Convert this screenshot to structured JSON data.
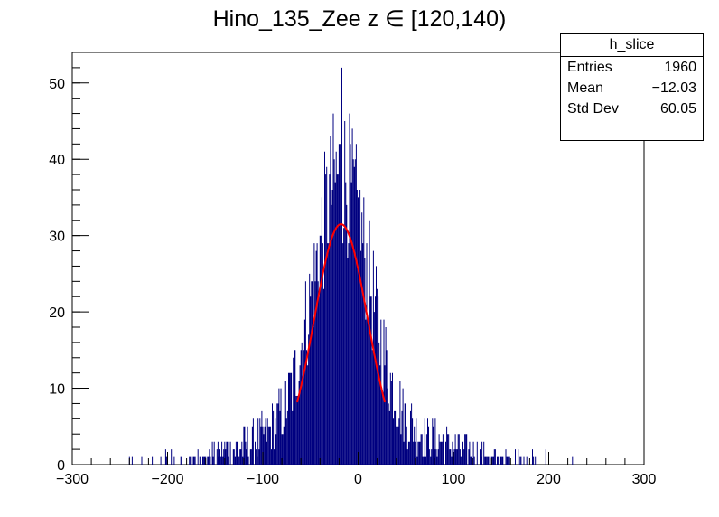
{
  "chart_data": {
    "type": "bar",
    "title": "Hino_135_Zee z  ∈ [120,140)",
    "xlim": [
      -300,
      300
    ],
    "ylim": [
      0,
      54
    ],
    "x_ticks": [
      -300,
      -200,
      -100,
      0,
      100,
      200,
      300
    ],
    "y_ticks": [
      0,
      10,
      20,
      30,
      40,
      50
    ],
    "x_tick_labels": [
      "−300",
      "−200",
      "−100",
      "0",
      "100",
      "200",
      "300"
    ],
    "y_tick_labels": [
      "0",
      "10",
      "20",
      "30",
      "40",
      "50"
    ],
    "histogram": {
      "name": "h_slice",
      "bin_width": 1,
      "x_range": [
        -300,
        300
      ],
      "color": "#000080",
      "peak_value": 52,
      "peak_x": -18
    },
    "fit": {
      "color": "#ff0000",
      "function": "gaussian",
      "x_range": [
        -64,
        28
      ],
      "constant": 31.5,
      "mean": -18,
      "sigma": 28
    },
    "stats": {
      "title": "h_slice",
      "rows": [
        {
          "label": "Entries",
          "value": "1960"
        },
        {
          "label": "Mean",
          "value": "−12.03"
        },
        {
          "label": "Std Dev",
          "value": "60.05"
        }
      ]
    },
    "grid": false,
    "legend": "top-right"
  }
}
